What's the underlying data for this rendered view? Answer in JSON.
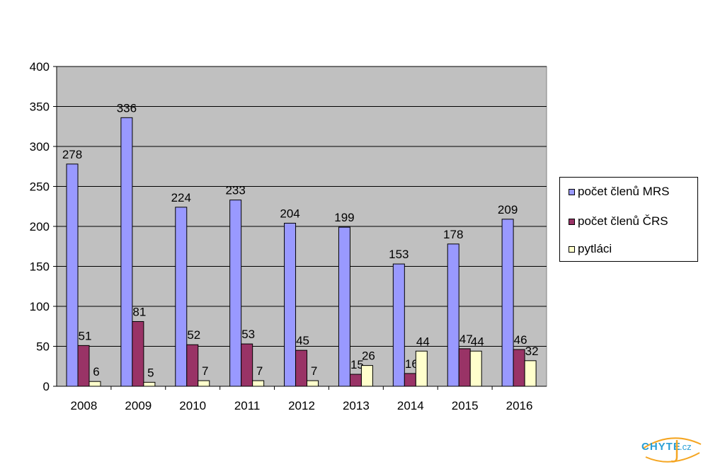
{
  "chart_data": {
    "type": "bar",
    "categories": [
      "2008",
      "2009",
      "2010",
      "2011",
      "2012",
      "2013",
      "2014",
      "2015",
      "2016"
    ],
    "series": [
      {
        "name": "počet členů MRS",
        "color": "#9999ff",
        "values": [
          278,
          336,
          224,
          233,
          204,
          199,
          153,
          178,
          209
        ]
      },
      {
        "name": "počet členů ČRS",
        "color": "#993366",
        "values": [
          51,
          81,
          52,
          53,
          45,
          15,
          16,
          47,
          46
        ]
      },
      {
        "name": "pytláci",
        "color": "#ffffcc",
        "values": [
          6,
          5,
          7,
          7,
          7,
          26,
          44,
          44,
          32
        ]
      }
    ],
    "ylim": [
      0,
      400
    ],
    "yticks": [
      "0",
      "50",
      "100",
      "150",
      "200",
      "250",
      "300",
      "350",
      "400"
    ],
    "plot_background": "#c0c0c0",
    "grid": true,
    "legend_position": "right"
  },
  "logo": {
    "text": "CHYTEJ.cz"
  }
}
